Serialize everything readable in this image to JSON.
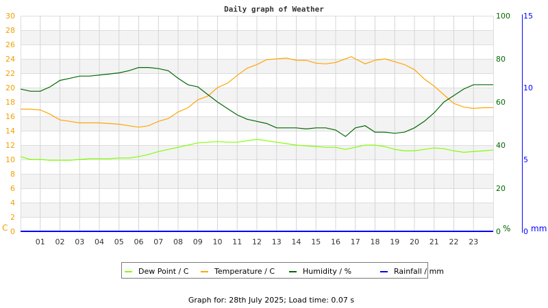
{
  "chart_data": {
    "type": "line",
    "title": "Daily graph of Weather",
    "x_ticks": [
      "01",
      "02",
      "03",
      "04",
      "05",
      "06",
      "07",
      "08",
      "09",
      "10",
      "11",
      "12",
      "13",
      "14",
      "15",
      "16",
      "17",
      "18",
      "19",
      "20",
      "21",
      "22",
      "23"
    ],
    "xlim": [
      0,
      24
    ],
    "grid": true,
    "legend_placement": "bottom",
    "axes": {
      "left": {
        "label": "C",
        "ylim": [
          0,
          30
        ],
        "ticks": [
          "0",
          "2",
          "4",
          "6",
          "8",
          "10",
          "12",
          "14",
          "16",
          "18",
          "20",
          "22",
          "24",
          "26",
          "28",
          "30"
        ],
        "color": "#f0a000"
      },
      "right": {
        "label": "%",
        "ylim": [
          0,
          100
        ],
        "ticks": [
          "0",
          "20",
          "40",
          "60",
          "80",
          "100"
        ],
        "color": "#006600"
      },
      "right2": {
        "label": "mm",
        "ylim": [
          0,
          15
        ],
        "ticks": [
          "0",
          "5",
          "10",
          "15"
        ],
        "color": "#0000ff"
      }
    },
    "series": [
      {
        "name": "Dew Point / C",
        "axis": "left",
        "color": "#80ff00",
        "x": [
          0,
          0.5,
          1,
          1.5,
          2,
          2.5,
          3,
          3.5,
          4,
          4.5,
          5,
          5.5,
          6,
          6.5,
          7,
          7.5,
          8,
          8.5,
          9,
          9.5,
          10,
          10.5,
          11,
          11.5,
          12,
          12.5,
          13,
          13.5,
          14,
          14.5,
          15,
          15.5,
          16,
          16.5,
          17,
          17.5,
          18,
          18.5,
          19,
          19.5,
          20,
          20.5,
          21,
          21.5,
          22,
          22.5,
          23,
          23.5,
          24
        ],
        "y": [
          10.4,
          10.0,
          10.0,
          9.9,
          9.9,
          9.9,
          10.0,
          10.1,
          10.1,
          10.1,
          10.2,
          10.2,
          10.4,
          10.7,
          11.1,
          11.4,
          11.7,
          12.0,
          12.3,
          12.4,
          12.5,
          12.4,
          12.4,
          12.6,
          12.8,
          12.6,
          12.4,
          12.2,
          12.0,
          11.9,
          11.8,
          11.7,
          11.7,
          11.4,
          11.7,
          12.0,
          12.0,
          11.8,
          11.4,
          11.2,
          11.2,
          11.4,
          11.6,
          11.5,
          11.2,
          11.0,
          11.1,
          11.2,
          11.3
        ]
      },
      {
        "name": "Temperature / C",
        "axis": "left",
        "color": "#ffa500",
        "x": [
          0,
          0.5,
          1,
          1.5,
          2,
          2.5,
          3,
          3.5,
          4,
          4.5,
          5,
          5.5,
          6,
          6.5,
          7,
          7.5,
          8,
          8.5,
          9,
          9.5,
          10,
          10.5,
          11,
          11.5,
          12,
          12.5,
          13,
          13.5,
          14,
          14.5,
          15,
          15.5,
          16,
          16.5,
          16.8,
          17,
          17.5,
          18,
          18.5,
          19,
          19.5,
          20,
          20.5,
          21,
          21.5,
          22,
          22.5,
          23,
          23.5,
          24
        ],
        "y": [
          17.0,
          17.0,
          16.9,
          16.3,
          15.5,
          15.3,
          15.1,
          15.1,
          15.1,
          15.0,
          14.9,
          14.7,
          14.5,
          14.7,
          15.3,
          15.7,
          16.6,
          17.2,
          18.3,
          18.8,
          20.0,
          20.6,
          21.7,
          22.7,
          23.2,
          23.9,
          24.0,
          24.1,
          23.8,
          23.8,
          23.4,
          23.3,
          23.5,
          24.0,
          24.3,
          24.0,
          23.3,
          23.8,
          24.0,
          23.6,
          23.2,
          22.5,
          21.2,
          20.2,
          19.0,
          17.8,
          17.3,
          17.1,
          17.2,
          17.2
        ]
      },
      {
        "name": "Humidity / %",
        "axis": "right",
        "color": "#006600",
        "x": [
          0,
          0.5,
          1,
          1.5,
          2,
          2.5,
          3,
          3.5,
          4,
          4.5,
          5,
          5.5,
          6,
          6.5,
          7,
          7.5,
          8,
          8.5,
          9,
          9.5,
          10,
          10.5,
          11,
          11.5,
          12,
          12.5,
          13,
          13.5,
          14,
          14.5,
          15,
          15.5,
          16,
          16.5,
          17,
          17.5,
          18,
          18.5,
          19,
          19.5,
          20,
          20.5,
          21,
          21.5,
          22,
          22.5,
          23,
          23.5,
          24
        ],
        "y": [
          66,
          65,
          65,
          67,
          70,
          71,
          72,
          72,
          72.5,
          73,
          73.5,
          74.5,
          76,
          76,
          75.5,
          74.5,
          71,
          68,
          67,
          63.5,
          60,
          57,
          54,
          52,
          51,
          50,
          48,
          48,
          48,
          47.5,
          48,
          48,
          47,
          44,
          48,
          49,
          46,
          46,
          45.5,
          46,
          48,
          51,
          55,
          60,
          63,
          66,
          68,
          68,
          68
        ]
      },
      {
        "name": "Rainfall / mm",
        "axis": "right2",
        "color": "#0000ff",
        "x": [
          0,
          24
        ],
        "y": [
          0,
          0
        ]
      }
    ]
  },
  "footer": "Graph for: 28th July 2025; Load time: 0.07 s"
}
